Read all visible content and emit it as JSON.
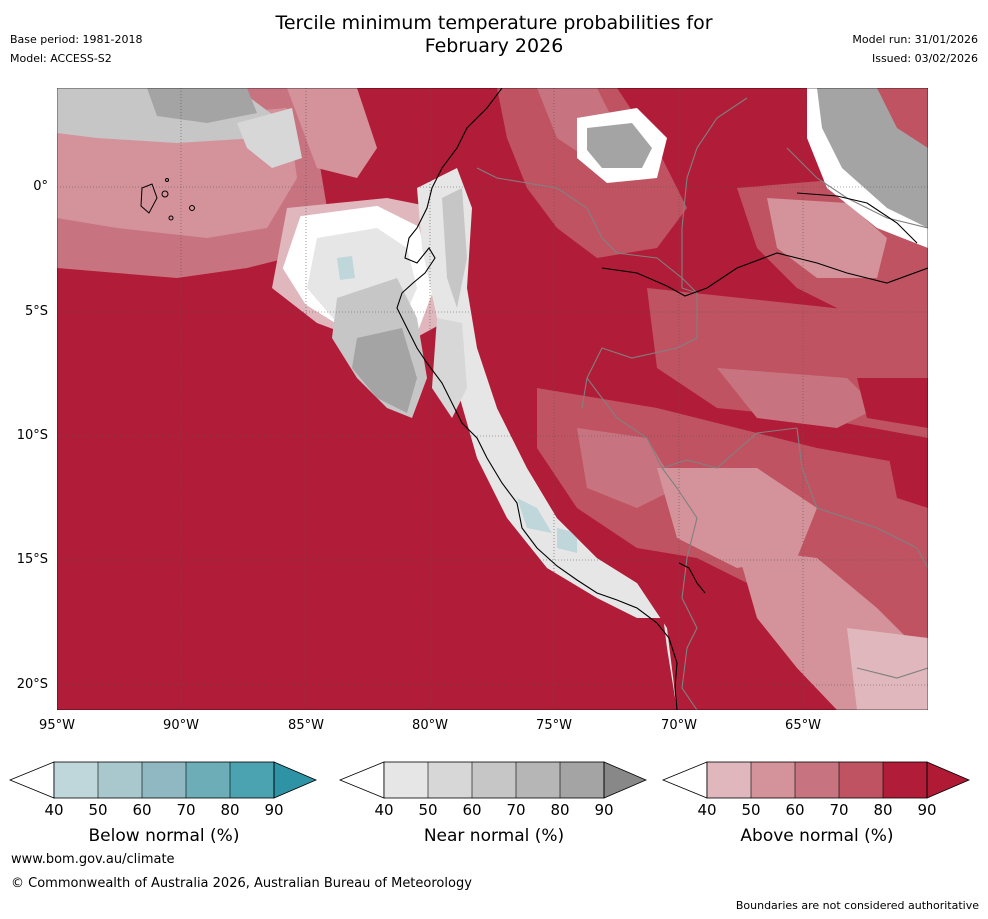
{
  "header": {
    "title_line1": "Tercile minimum temperature probabilities for",
    "title_line2": "February 2026",
    "base_period": "Base period: 1981-2018",
    "model": "Model: ACCESS-S2",
    "model_run": "Model run: 31/01/2026",
    "issued": "Issued: 03/02/2026"
  },
  "map": {
    "lat_labels": [
      "0°",
      "5°S",
      "10°S",
      "15°S",
      "20°S"
    ],
    "lon_labels": [
      "95°W",
      "90°W",
      "85°W",
      "80°W",
      "75°W",
      "70°W",
      "65°W"
    ],
    "colors": {
      "above": [
        "#e0b7bc",
        "#d4939b",
        "#c87480",
        "#c05362",
        "#b11d38"
      ],
      "above_extend": "#b01a35",
      "near": [
        "#e6e6e6",
        "#d7d7d7",
        "#c6c6c6",
        "#b6b6b6",
        "#a4a4a4"
      ],
      "near_extend": "#888888",
      "below": [
        "#bfd6da",
        "#a9c8ce",
        "#8fb8c2",
        "#6cadb8",
        "#4ba2b0"
      ],
      "below_extend": "#2e93a5",
      "coast": "#000000",
      "border": "#808080"
    }
  },
  "colorbars": [
    {
      "title": "Below normal (%)",
      "ticks": [
        "40",
        "50",
        "60",
        "70",
        "80",
        "90"
      ]
    },
    {
      "title": "Near normal (%)",
      "ticks": [
        "40",
        "50",
        "60",
        "70",
        "80",
        "90"
      ]
    },
    {
      "title": "Above normal (%)",
      "ticks": [
        "40",
        "50",
        "60",
        "70",
        "80",
        "90"
      ]
    }
  ],
  "footer": {
    "url": "www.bom.gov.au/climate",
    "copyright": "© Commonwealth of Australia 2026, Australian Bureau of Meteorology",
    "disclaimer": "Boundaries are not considered authoritative"
  }
}
